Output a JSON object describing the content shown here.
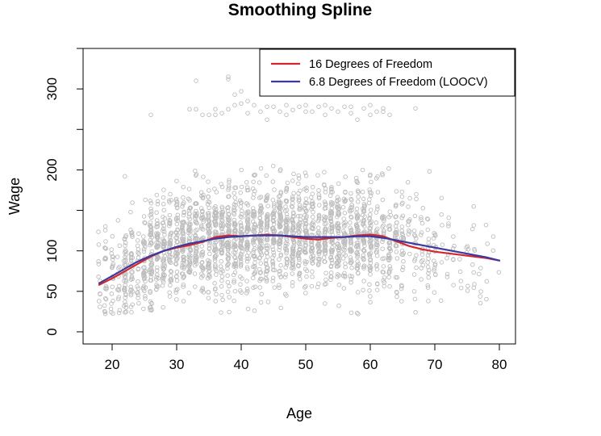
{
  "chart_data": {
    "type": "scatter",
    "title": "Smoothing Spline",
    "xlabel": "Age",
    "ylabel": "Wage",
    "xlim": [
      15.5,
      82.5
    ],
    "ylim": [
      -15,
      350
    ],
    "x_ticks": [
      20,
      30,
      40,
      50,
      60,
      70,
      80
    ],
    "y_ticks": [
      0,
      50,
      100,
      150,
      200,
      250,
      300,
      350
    ],
    "y_tick_labels": [
      "0",
      "50",
      "100",
      "",
      "200",
      "",
      "300",
      ""
    ],
    "grid": false,
    "legend_position": "top-right",
    "point_color": "#bdbdbd",
    "series": [
      {
        "name": "16 Degrees of Freedom",
        "color": "#d7262b",
        "x": [
          18,
          20,
          22,
          24,
          26,
          28,
          30,
          32,
          34,
          36,
          38,
          40,
          42,
          44,
          46,
          48,
          50,
          52,
          54,
          56,
          58,
          60,
          62,
          64,
          66,
          68,
          70,
          72,
          74,
          76,
          78,
          80
        ],
        "y": [
          58,
          66,
          75,
          84,
          93,
          100,
          104,
          107,
          111,
          117,
          119,
          118,
          119,
          120,
          119,
          117,
          115,
          114,
          116,
          117,
          119,
          120,
          118,
          112,
          106,
          102,
          99,
          97,
          95,
          93,
          91,
          88
        ]
      },
      {
        "name": "6.8 Degrees of Freedom (LOOCV)",
        "color": "#3a3aa0",
        "x": [
          18,
          20,
          22,
          24,
          26,
          28,
          30,
          32,
          34,
          36,
          38,
          40,
          42,
          44,
          46,
          48,
          50,
          52,
          54,
          56,
          58,
          60,
          62,
          64,
          66,
          68,
          70,
          72,
          74,
          76,
          78,
          80
        ],
        "y": [
          60,
          69,
          78,
          87,
          94,
          100,
          105,
          109,
          112,
          115,
          117,
          118,
          119,
          119,
          119,
          118,
          117,
          117,
          117,
          117,
          118,
          118,
          116,
          113,
          110,
          107,
          104,
          101,
          98,
          95,
          92,
          88
        ]
      }
    ],
    "outlier_points": [
      [
        33,
        310
      ],
      [
        38,
        315
      ],
      [
        38,
        312
      ],
      [
        40,
        297
      ],
      [
        39,
        293
      ],
      [
        58,
        312
      ],
      [
        46,
        322
      ],
      [
        26,
        268
      ],
      [
        32,
        275
      ],
      [
        33,
        275
      ],
      [
        34,
        268
      ],
      [
        35,
        268
      ],
      [
        36,
        268
      ],
      [
        37,
        270
      ],
      [
        38,
        275
      ],
      [
        39,
        280
      ],
      [
        40,
        282
      ],
      [
        41,
        285
      ],
      [
        42,
        280
      ],
      [
        43,
        272
      ],
      [
        44,
        262
      ],
      [
        45,
        278
      ],
      [
        46,
        272
      ],
      [
        47,
        280
      ],
      [
        48,
        274
      ],
      [
        49,
        278
      ],
      [
        50,
        280
      ],
      [
        51,
        272
      ],
      [
        52,
        278
      ],
      [
        53,
        268
      ],
      [
        54,
        276
      ],
      [
        55,
        272
      ],
      [
        56,
        278
      ],
      [
        57,
        270
      ],
      [
        58,
        262
      ],
      [
        59,
        276
      ],
      [
        60,
        280
      ],
      [
        61,
        272
      ],
      [
        62,
        276
      ],
      [
        63,
        268
      ],
      [
        67,
        276
      ],
      [
        36,
        275
      ],
      [
        41,
        270
      ],
      [
        44,
        278
      ],
      [
        47,
        268
      ],
      [
        50,
        272
      ],
      [
        53,
        280
      ],
      [
        57,
        278
      ],
      [
        60,
        268
      ],
      [
        62,
        272
      ]
    ],
    "scatter_sample": {
      "n": 2400,
      "age_range": [
        18,
        80
      ],
      "wage_range": [
        20,
        220
      ]
    }
  }
}
